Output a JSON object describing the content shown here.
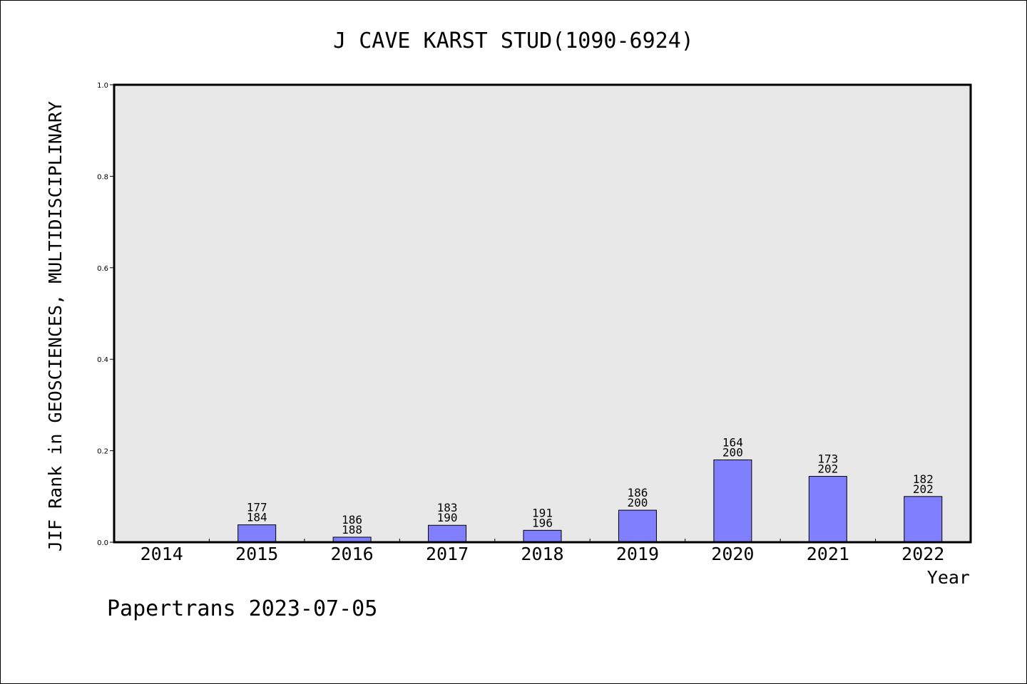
{
  "chart_data": {
    "type": "bar",
    "title": "J CAVE KARST STUD(1090-6924)",
    "xlabel": "Year",
    "ylabel": "JIF Rank in GEOSCIENCES, MULTIDISCIPLINARY",
    "ylim": [
      0,
      1.0
    ],
    "yticks": [
      "0.0",
      "0.2",
      "0.4",
      "0.6",
      "0.8",
      "1.0"
    ],
    "grid": false,
    "categories": [
      "2014",
      "2015",
      "2016",
      "2017",
      "2018",
      "2019",
      "2020",
      "2021",
      "2022"
    ],
    "values": [
      null,
      0.038,
      0.011,
      0.037,
      0.026,
      0.07,
      0.18,
      0.144,
      0.1
    ],
    "labels": [
      null,
      [
        "177",
        "184"
      ],
      [
        "186",
        "188"
      ],
      [
        "183",
        "190"
      ],
      [
        "191",
        "196"
      ],
      [
        "186",
        "200"
      ],
      [
        "164",
        "200"
      ],
      [
        "173",
        "202"
      ],
      [
        "182",
        "202"
      ]
    ],
    "colors": {
      "bar": "#8080ff",
      "plot_bg": "#e8e8e8",
      "axis": "#000000"
    }
  },
  "footer": "Papertrans 2023-07-05"
}
